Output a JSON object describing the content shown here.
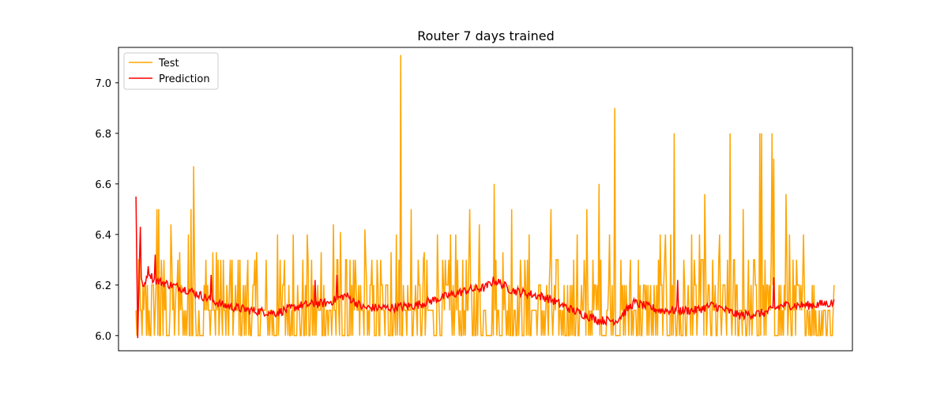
{
  "chart_data": {
    "type": "line",
    "title": "Router 7 days trained",
    "xlabel": "",
    "ylabel": "",
    "ylim": [
      5.94,
      7.14
    ],
    "yticks": [
      6.0,
      6.2,
      6.4,
      6.6,
      6.8,
      7.0
    ],
    "ytick_labels": [
      "6.0",
      "6.2",
      "6.4",
      "6.6",
      "6.8",
      "7.0"
    ],
    "x_tick_labels_visible": false,
    "grid": false,
    "legend_position": "upper-left",
    "n_points": 800,
    "series": [
      {
        "name": "Test",
        "color": "#ffa500",
        "baseline_levels": [
          6.0,
          6.1,
          6.2,
          6.3
        ],
        "spikes": [
          {
            "x": 3,
            "y": 6.3
          },
          {
            "x": 24,
            "y": 6.5
          },
          {
            "x": 26,
            "y": 6.5
          },
          {
            "x": 32,
            "y": 6.3
          },
          {
            "x": 40,
            "y": 6.44
          },
          {
            "x": 48,
            "y": 6.3
          },
          {
            "x": 50,
            "y": 6.33
          },
          {
            "x": 60,
            "y": 6.4
          },
          {
            "x": 63,
            "y": 6.5
          },
          {
            "x": 66,
            "y": 6.67
          },
          {
            "x": 80,
            "y": 6.3
          },
          {
            "x": 88,
            "y": 6.33
          },
          {
            "x": 92,
            "y": 6.33
          },
          {
            "x": 100,
            "y": 6.3
          },
          {
            "x": 110,
            "y": 6.3
          },
          {
            "x": 117,
            "y": 6.3
          },
          {
            "x": 128,
            "y": 6.3
          },
          {
            "x": 138,
            "y": 6.33
          },
          {
            "x": 162,
            "y": 6.4
          },
          {
            "x": 170,
            "y": 6.3
          },
          {
            "x": 180,
            "y": 6.4
          },
          {
            "x": 196,
            "y": 6.4
          },
          {
            "x": 212,
            "y": 6.33
          },
          {
            "x": 226,
            "y": 6.44
          },
          {
            "x": 234,
            "y": 6.41
          },
          {
            "x": 245,
            "y": 6.3
          },
          {
            "x": 262,
            "y": 6.42
          },
          {
            "x": 280,
            "y": 6.3
          },
          {
            "x": 292,
            "y": 6.33
          },
          {
            "x": 298,
            "y": 6.4
          },
          {
            "x": 303,
            "y": 7.11
          },
          {
            "x": 315,
            "y": 6.5
          },
          {
            "x": 330,
            "y": 6.33
          },
          {
            "x": 345,
            "y": 6.4
          },
          {
            "x": 360,
            "y": 6.4
          },
          {
            "x": 366,
            "y": 6.4
          },
          {
            "x": 382,
            "y": 6.5
          },
          {
            "x": 393,
            "y": 6.44
          },
          {
            "x": 410,
            "y": 6.6
          },
          {
            "x": 420,
            "y": 6.33
          },
          {
            "x": 430,
            "y": 6.5
          },
          {
            "x": 450,
            "y": 6.4
          },
          {
            "x": 475,
            "y": 6.5
          },
          {
            "x": 505,
            "y": 6.4
          },
          {
            "x": 516,
            "y": 6.5
          },
          {
            "x": 530,
            "y": 6.6
          },
          {
            "x": 542,
            "y": 6.4
          },
          {
            "x": 548,
            "y": 6.9
          },
          {
            "x": 575,
            "y": 6.3
          },
          {
            "x": 600,
            "y": 6.4
          },
          {
            "x": 606,
            "y": 6.4
          },
          {
            "x": 612,
            "y": 6.4
          },
          {
            "x": 616,
            "y": 6.8
          },
          {
            "x": 636,
            "y": 6.4
          },
          {
            "x": 645,
            "y": 6.4
          },
          {
            "x": 651,
            "y": 6.56
          },
          {
            "x": 668,
            "y": 6.4
          },
          {
            "x": 680,
            "y": 6.8
          },
          {
            "x": 695,
            "y": 6.5
          },
          {
            "x": 708,
            "y": 6.3
          },
          {
            "x": 714,
            "y": 6.8
          },
          {
            "x": 716,
            "y": 6.8
          },
          {
            "x": 728,
            "y": 6.8
          },
          {
            "x": 730,
            "y": 6.7
          },
          {
            "x": 744,
            "y": 6.56
          },
          {
            "x": 748,
            "y": 6.4
          },
          {
            "x": 764,
            "y": 6.4
          }
        ]
      },
      {
        "name": "Prediction",
        "color": "#ff0000",
        "trend": [
          {
            "x": 0,
            "y": 6.55
          },
          {
            "x": 2,
            "y": 5.99
          },
          {
            "x": 4,
            "y": 6.3
          },
          {
            "x": 8,
            "y": 6.18
          },
          {
            "x": 14,
            "y": 6.26
          },
          {
            "x": 20,
            "y": 6.22
          },
          {
            "x": 40,
            "y": 6.2
          },
          {
            "x": 60,
            "y": 6.18
          },
          {
            "x": 80,
            "y": 6.15
          },
          {
            "x": 100,
            "y": 6.12
          },
          {
            "x": 130,
            "y": 6.1
          },
          {
            "x": 160,
            "y": 6.09
          },
          {
            "x": 190,
            "y": 6.12
          },
          {
            "x": 220,
            "y": 6.13
          },
          {
            "x": 240,
            "y": 6.16
          },
          {
            "x": 260,
            "y": 6.11
          },
          {
            "x": 290,
            "y": 6.11
          },
          {
            "x": 320,
            "y": 6.12
          },
          {
            "x": 350,
            "y": 6.15
          },
          {
            "x": 380,
            "y": 6.18
          },
          {
            "x": 400,
            "y": 6.19
          },
          {
            "x": 410,
            "y": 6.22
          },
          {
            "x": 430,
            "y": 6.18
          },
          {
            "x": 470,
            "y": 6.15
          },
          {
            "x": 500,
            "y": 6.1
          },
          {
            "x": 530,
            "y": 6.06
          },
          {
            "x": 550,
            "y": 6.06
          },
          {
            "x": 570,
            "y": 6.13
          },
          {
            "x": 600,
            "y": 6.1
          },
          {
            "x": 640,
            "y": 6.1
          },
          {
            "x": 660,
            "y": 6.12
          },
          {
            "x": 690,
            "y": 6.08
          },
          {
            "x": 720,
            "y": 6.09
          },
          {
            "x": 740,
            "y": 6.12
          },
          {
            "x": 770,
            "y": 6.12
          },
          {
            "x": 800,
            "y": 6.13
          }
        ],
        "spikes": [
          {
            "x": 5,
            "y": 6.43
          },
          {
            "x": 22,
            "y": 6.32
          },
          {
            "x": 86,
            "y": 6.24
          },
          {
            "x": 205,
            "y": 6.22
          },
          {
            "x": 230,
            "y": 6.24
          },
          {
            "x": 620,
            "y": 6.22
          },
          {
            "x": 730,
            "y": 6.23
          }
        ]
      }
    ]
  }
}
